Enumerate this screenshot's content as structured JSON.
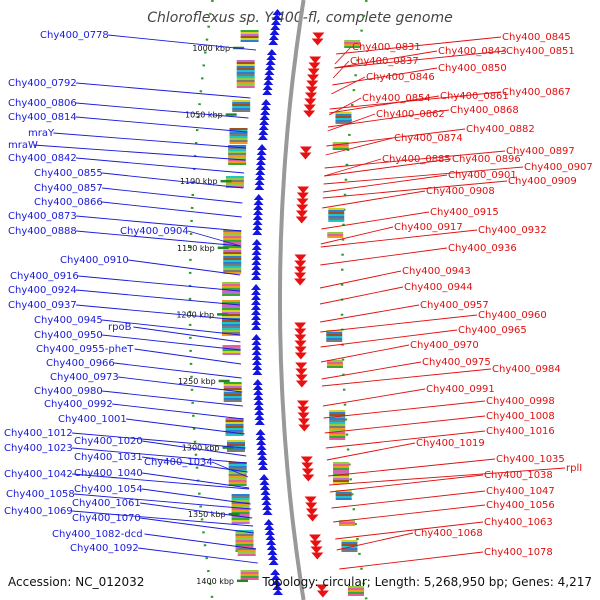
{
  "title": "Chloroflexus sp. Y-400-fl, complete genome",
  "footer": {
    "accession": "Accession: NC_012032",
    "summary": "Topology: circular; Length: 5,268,950 bp; Genes: 4,217"
  },
  "colors": {
    "forward_genes": "#1515e0",
    "reverse_genes": "#e81010",
    "backbone": "#999999",
    "gc_dots": "#2a9a2a"
  },
  "kbp_marks": [
    "1000 kbp",
    "1050 kbp",
    "1100 kbp",
    "1150 kbp",
    "1200 kbp",
    "1250 kbp",
    "1300 kbp",
    "1350 kbp",
    "1400 kbp"
  ],
  "left_labels": [
    "Chy400_0778",
    "Chy400_0792",
    "Chy400_0806",
    "Chy400_0814",
    "mraY",
    "mraW",
    "Chy400_0842",
    "Chy400_0855",
    "Chy400_0857",
    "Chy400_0866",
    "Chy400_0873",
    "Chy400_0888",
    "Chy400_0904",
    "Chy400_0910",
    "Chy400_0916",
    "Chy400_0924",
    "Chy400_0937",
    "Chy400_0945",
    "rpoB",
    "Chy400_0950",
    "Chy400_0955-pheT",
    "Chy400_0966",
    "Chy400_0973",
    "Chy400_0980",
    "Chy400_0992",
    "Chy400_1001",
    "Chy400_1012",
    "Chy400_1020",
    "Chy400_1023",
    "Chy400_1031",
    "Chy400_1034",
    "Chy400_1040",
    "Chy400_1042",
    "Chy400_1054",
    "Chy400_1058",
    "Chy400_1061",
    "Chy400_1069",
    "Chy400_1070",
    "Chy400_1082-dcd",
    "Chy400_1092"
  ],
  "right_labels": [
    "Chy400_0831",
    "Chy400_0845",
    "Chy400_0843",
    "Chy400_0851",
    "Chy400_0837",
    "Chy400_0850",
    "Chy400_0846",
    "Chy400_0867",
    "Chy400_0854",
    "Chy400_0861",
    "Chy400_0868",
    "Chy400_0862",
    "Chy400_0882",
    "Chy400_0874",
    "Chy400_0897",
    "Chy400_0885",
    "Chy400_0896",
    "Chy400_0907",
    "Chy400_0901",
    "Chy400_0909",
    "Chy400_0908",
    "Chy400_0915",
    "Chy400_0917",
    "Chy400_0932",
    "Chy400_0936",
    "Chy400_0943",
    "Chy400_0944",
    "Chy400_0957",
    "Chy400_0960",
    "Chy400_0965",
    "Chy400_0970",
    "Chy400_0975",
    "Chy400_0984",
    "Chy400_0991",
    "Chy400_0998",
    "Chy400_1008",
    "Chy400_1016",
    "Chy400_1019",
    "Chy400_1035",
    "rplI",
    "Chy400_1038",
    "Chy400_1047",
    "Chy400_1056",
    "Chy400_1063",
    "Chy400_1068",
    "Chy400_1078"
  ]
}
